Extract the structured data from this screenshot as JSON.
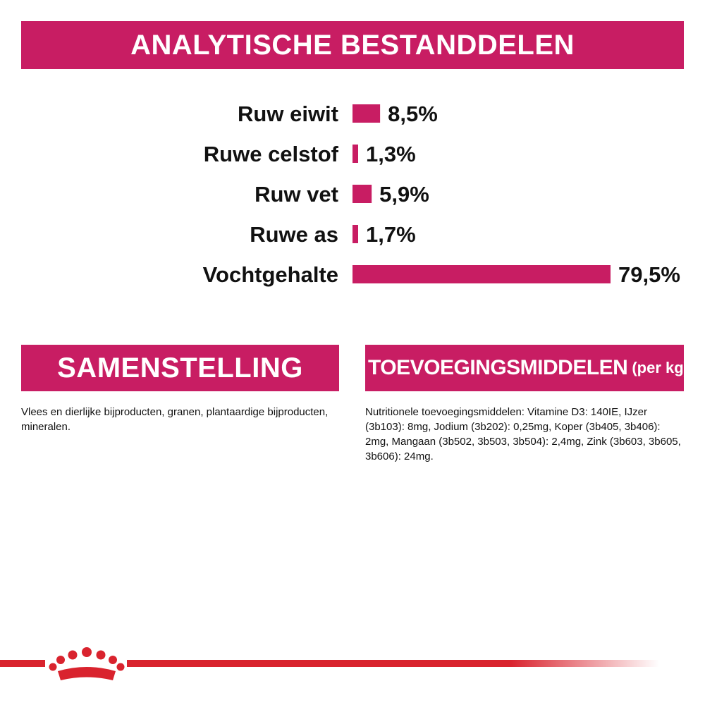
{
  "header": {
    "title": "ANALYTISCHE BESTANDDELEN"
  },
  "chart_data": {
    "type": "bar",
    "orientation": "horizontal",
    "title": "ANALYTISCHE BESTANDDELEN",
    "categories": [
      "Ruw eiwit",
      "Ruwe celstof",
      "Ruw vet",
      "Ruwe as",
      "Vochtgehalte"
    ],
    "values": [
      8.5,
      1.3,
      5.9,
      1.7,
      79.5
    ],
    "value_labels": [
      "8,5%",
      "1,3%",
      "5,9%",
      "1,7%",
      "79,5%"
    ],
    "unit": "%",
    "xlim": [
      0,
      79.5
    ],
    "bar_color": "#c81d63",
    "grid": false,
    "legend": "none"
  },
  "composition": {
    "title": "SAMENSTELLING",
    "text": "Vlees en dierlijke bijproducten, granen, plantaardige bijproducten, mineralen."
  },
  "additives": {
    "title": "TOEVOEGINGSMIDDELEN",
    "title_suffix": "(per kg)",
    "text": "Nutritionele toevoegingsmiddelen: Vitamine D3: 140IE, IJzer (3b103): 8mg, Jodium (3b202): 0,25mg, Koper (3b405, 3b406): 2mg, Mangaan (3b502, 3b503, 3b504): 2,4mg, Zink (3b603, 3b605, 3b606): 24mg."
  },
  "colors": {
    "accent": "#c81d63",
    "footer_line": "#d9232e",
    "crown": "#d9232e"
  },
  "footer": {
    "logo_icon": "crown-icon"
  }
}
